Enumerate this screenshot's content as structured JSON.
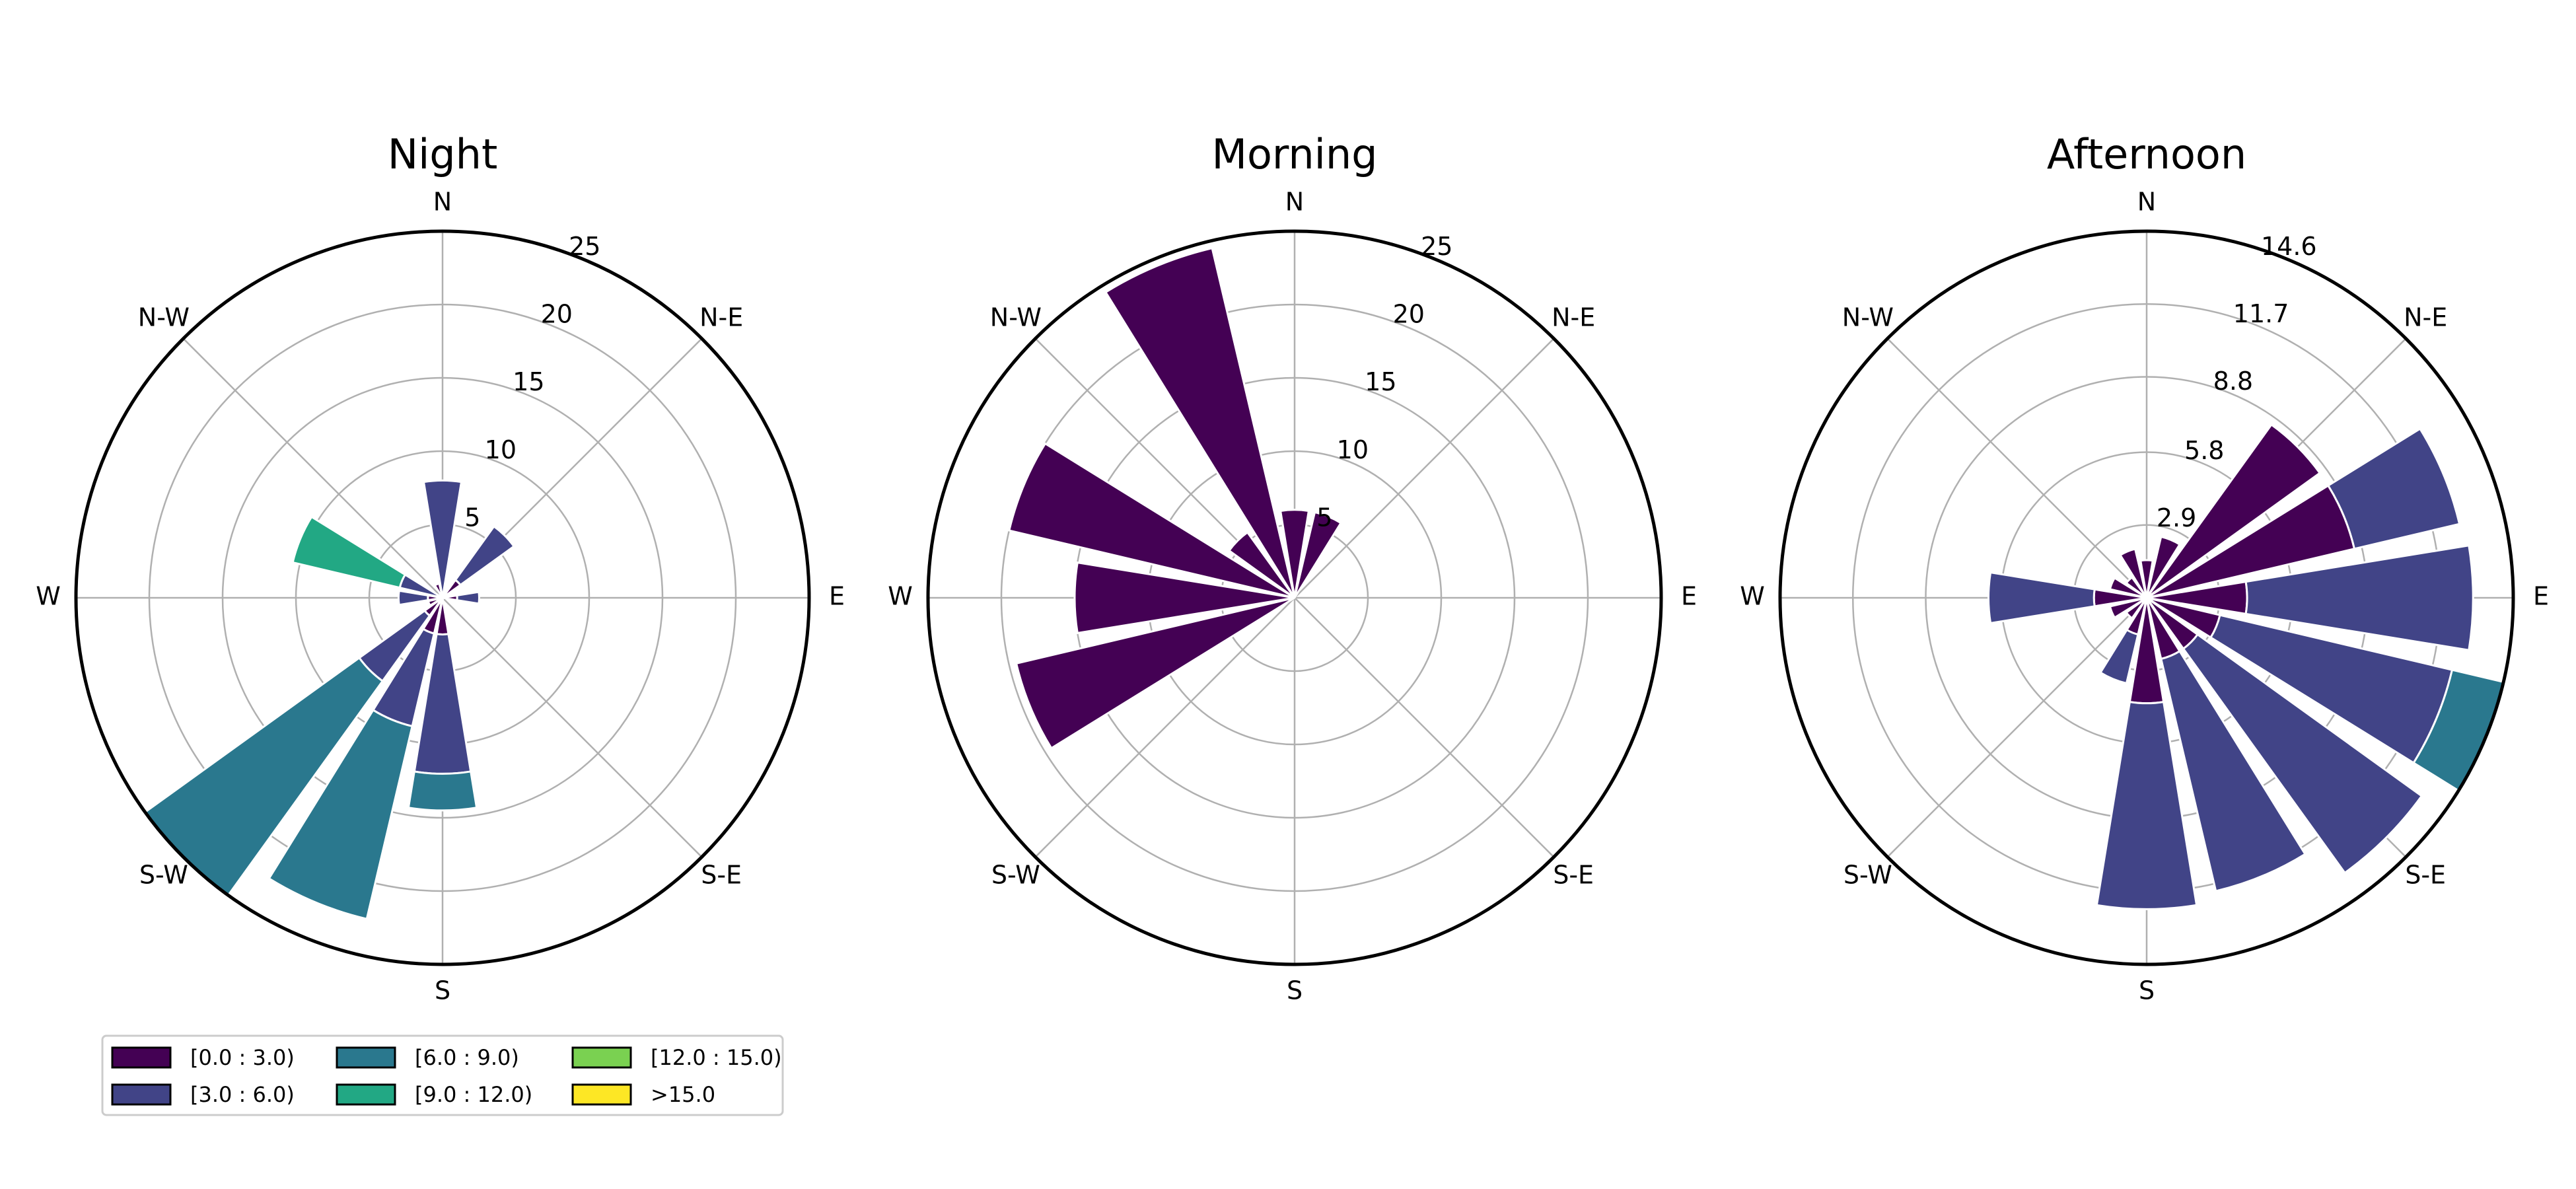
{
  "chart_data": {
    "type": "windrose",
    "directions": [
      "N",
      "N-E",
      "E",
      "S-E",
      "S",
      "S-W",
      "W",
      "N-W"
    ],
    "sectors_deg": [
      0,
      22.5,
      45,
      67.5,
      90,
      112.5,
      135,
      157.5,
      180,
      202.5,
      225,
      247.5,
      270,
      292.5,
      315,
      337.5
    ],
    "bins": [
      {
        "label": "[0.0 : 3.0)",
        "color": "#440154"
      },
      {
        "label": "[3.0 : 6.0)",
        "color": "#414487"
      },
      {
        "label": "[6.0 : 9.0)",
        "color": "#2a788e"
      },
      {
        "label": "[9.0 : 12.0)",
        "color": "#22a884"
      },
      {
        "label": "[12.0 : 15.0)",
        "color": "#7ad151"
      },
      {
        "label": ">15.0",
        "color": "#fde725"
      }
    ],
    "panels": [
      {
        "title": "Night",
        "rmax": 25,
        "rticks": [
          5,
          10,
          15,
          20,
          25
        ],
        "rtick_labels": [
          "5",
          "10",
          "15",
          "20",
          "25"
        ],
        "stacks": [
          [
            0,
            8,
            0,
            0,
            0,
            0
          ],
          [
            0,
            0,
            0,
            0,
            0,
            0
          ],
          [
            1.5,
            4.5,
            0,
            0,
            0,
            0
          ],
          [
            0,
            0,
            0,
            0,
            0,
            0
          ],
          [
            1.0,
            1.5,
            0,
            0,
            0,
            0
          ],
          [
            0,
            0,
            0,
            0,
            0,
            0
          ],
          [
            0,
            0,
            0,
            0,
            0,
            0
          ],
          [
            0,
            0,
            0,
            0,
            0,
            0
          ],
          [
            2.5,
            9.5,
            2.5,
            0,
            0,
            0
          ],
          [
            2.5,
            6.5,
            13.5,
            0,
            0,
            0
          ],
          [
            1.5,
            5.5,
            18.0,
            0,
            0,
            0
          ],
          [
            1.0,
            0,
            0,
            0,
            0,
            0
          ],
          [
            1.0,
            2.0,
            0,
            0,
            0,
            0
          ],
          [
            0,
            1.5,
            0,
            0,
            0,
            0
          ],
          [
            0,
            0,
            0,
            0,
            0,
            0
          ],
          [
            1.0,
            0,
            0,
            0,
            0,
            0
          ]
        ],
        "extra_stacks": [
          {
            "angle": 292.5,
            "values": [
              0,
              3.0,
              0,
              7.5,
              0,
              0
            ],
            "offset": 3.0
          }
        ]
      },
      {
        "title": "Morning",
        "rmax": 25,
        "rticks": [
          5,
          10,
          15,
          20,
          25
        ],
        "rtick_labels": [
          "5",
          "10",
          "15",
          "20",
          "25"
        ],
        "stacks": [
          [
            6.0,
            0,
            0,
            0,
            0,
            0
          ],
          [
            6.0,
            0,
            0,
            0,
            0,
            0
          ],
          [
            0,
            0,
            0,
            0,
            0,
            0
          ],
          [
            0,
            0,
            0,
            0,
            0,
            0
          ],
          [
            0,
            0,
            0,
            0,
            0,
            0
          ],
          [
            0,
            0,
            0,
            0,
            0,
            0
          ],
          [
            0,
            0,
            0,
            0,
            0,
            0
          ],
          [
            0,
            0,
            0,
            0,
            0,
            0
          ],
          [
            0,
            0,
            0,
            0,
            0,
            0
          ],
          [
            0,
            0,
            0,
            0,
            0,
            0
          ],
          [
            0,
            0,
            0,
            0,
            0,
            0
          ],
          [
            19.5,
            0,
            0,
            0,
            0,
            0
          ],
          [
            15.0,
            0,
            0,
            0,
            0,
            0
          ],
          [
            15.0,
            0,
            0,
            0,
            0,
            0
          ],
          [
            5.5,
            0,
            0,
            0,
            0,
            0
          ],
          [
            24.5,
            0,
            0,
            0,
            0,
            0
          ]
        ],
        "extra_stacks": [
          {
            "angle": 292.5,
            "values": [
              20.0,
              0,
              0,
              0,
              0,
              0
            ],
            "offset": 0
          }
        ]
      },
      {
        "title": "Afternoon",
        "rmax": 14.6,
        "rticks": [
          2.9,
          5.8,
          8.8,
          11.7,
          14.6
        ],
        "rtick_labels": [
          "2.9",
          "5.8",
          "8.8",
          "11.7",
          "14.6"
        ],
        "stacks": [
          [
            1.5,
            0,
            0,
            0,
            0,
            0
          ],
          [
            2.5,
            0,
            0,
            0,
            0,
            0
          ],
          [
            8.5,
            0,
            0,
            0,
            0,
            0
          ],
          [
            8.5,
            4.3,
            0,
            0,
            0,
            0
          ],
          [
            4.0,
            9.0,
            0,
            0,
            0,
            0
          ],
          [
            3.0,
            9.5,
            2.1,
            0,
            0,
            0
          ],
          [
            2.5,
            11.0,
            0,
            0,
            0,
            0
          ],
          [
            2.5,
            9.5,
            0,
            0,
            0,
            0
          ],
          [
            4.2,
            8.2,
            0,
            0,
            0,
            0
          ],
          [
            1.5,
            2.0,
            0,
            0,
            0,
            0
          ],
          [
            1.0,
            0,
            0,
            0,
            0,
            0
          ],
          [
            1.5,
            0,
            0,
            0,
            0,
            0
          ],
          [
            2.1,
            4.2,
            0,
            0,
            0,
            0
          ],
          [
            1.5,
            0,
            0,
            0,
            0,
            0
          ],
          [
            1.0,
            0,
            0,
            0,
            0,
            0
          ],
          [
            2.0,
            0,
            0,
            0,
            0,
            0
          ]
        ],
        "extra_stacks": []
      }
    ],
    "legend": {
      "placement": "lower-left",
      "columns": 3
    }
  }
}
